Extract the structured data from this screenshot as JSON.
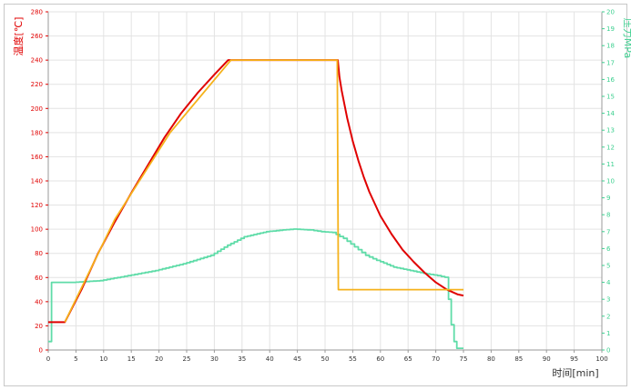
{
  "chart_data": {
    "type": "line",
    "xlabel": "时间[min]",
    "ylabel_left": "温度[℃]",
    "ylabel_right": "压力MPa",
    "xlim": [
      0,
      100
    ],
    "ylim_left": [
      0,
      280
    ],
    "ylim_right": [
      0,
      20
    ],
    "x_ticks": [
      "0",
      "5",
      "10",
      "15",
      "20",
      "25",
      "30",
      "35",
      "40",
      "45",
      "50",
      "55",
      "60",
      "65",
      "70",
      "75",
      "80",
      "85",
      "90",
      "95",
      "100"
    ],
    "y_left_ticks": [
      "0",
      "20",
      "40",
      "60",
      "80",
      "100",
      "120",
      "140",
      "160",
      "180",
      "200",
      "220",
      "240",
      "260",
      "280"
    ],
    "y_right_ticks": [
      "0",
      "1",
      "2",
      "3",
      "4",
      "5",
      "6",
      "7",
      "8",
      "9",
      "10",
      "11",
      "12",
      "13",
      "14",
      "15",
      "16",
      "17",
      "18",
      "19",
      "20"
    ],
    "grid": true,
    "colors": {
      "temperature_actual": "#e00000",
      "temperature_setpoint": "#f5b21b",
      "pressure": "#5fdca8",
      "left_axis": "#e00000",
      "right_axis": "#3ccf8f"
    },
    "series": [
      {
        "key": "temperature_actual",
        "axis": "left",
        "values": [
          [
            0,
            23
          ],
          [
            3,
            23
          ],
          [
            6,
            50
          ],
          [
            9,
            80
          ],
          [
            12,
            106
          ],
          [
            15,
            130
          ],
          [
            18,
            153
          ],
          [
            21,
            176
          ],
          [
            24,
            196
          ],
          [
            27,
            213
          ],
          [
            30,
            228
          ],
          [
            32.5,
            240
          ],
          [
            40,
            240
          ],
          [
            51.5,
            240
          ],
          [
            52.3,
            240
          ],
          [
            52.6,
            226
          ],
          [
            53,
            215
          ],
          [
            54,
            192
          ],
          [
            55,
            173
          ],
          [
            56,
            157
          ],
          [
            57,
            143
          ],
          [
            58,
            131
          ],
          [
            60,
            111
          ],
          [
            62,
            96
          ],
          [
            64,
            83
          ],
          [
            66,
            73
          ],
          [
            68,
            64
          ],
          [
            70,
            56
          ],
          [
            72,
            50
          ],
          [
            74,
            46
          ],
          [
            75,
            45
          ]
        ]
      },
      {
        "key": "temperature_setpoint",
        "axis": "left",
        "values": [
          [
            3,
            23
          ],
          [
            12,
            108
          ],
          [
            22,
            180
          ],
          [
            33,
            240
          ],
          [
            52.2,
            240
          ],
          [
            52.4,
            50
          ],
          [
            75,
            50
          ]
        ]
      },
      {
        "key": "pressure",
        "axis": "right",
        "values": [
          [
            0,
            0.5
          ],
          [
            0.6,
            0.5
          ],
          [
            0.8,
            4.0
          ],
          [
            5,
            4.0
          ],
          [
            10,
            4.1
          ],
          [
            15,
            4.4
          ],
          [
            20,
            4.7
          ],
          [
            25,
            5.1
          ],
          [
            30,
            5.6
          ],
          [
            33,
            6.2
          ],
          [
            36,
            6.7
          ],
          [
            40,
            7.0
          ],
          [
            43,
            7.1
          ],
          [
            45,
            7.15
          ],
          [
            48,
            7.1
          ],
          [
            50,
            7.0
          ],
          [
            52,
            6.95
          ],
          [
            54,
            6.6
          ],
          [
            56,
            6.1
          ],
          [
            58,
            5.6
          ],
          [
            60,
            5.3
          ],
          [
            63,
            4.9
          ],
          [
            66,
            4.7
          ],
          [
            69,
            4.5
          ],
          [
            71,
            4.4
          ],
          [
            72.3,
            4.3
          ],
          [
            72.8,
            3.0
          ],
          [
            73.3,
            1.5
          ],
          [
            73.8,
            0.5
          ],
          [
            74.3,
            0.1
          ],
          [
            75,
            0.1
          ]
        ]
      }
    ]
  }
}
